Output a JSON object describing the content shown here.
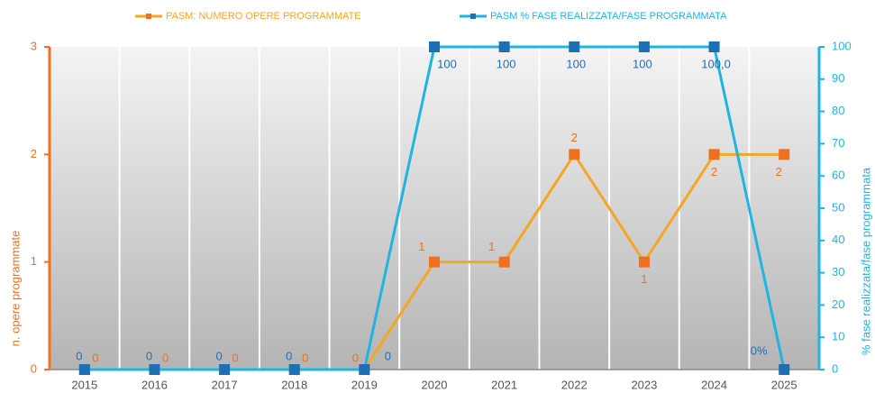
{
  "chart_data": {
    "type": "line",
    "categories": [
      "2015",
      "2016",
      "2017",
      "2018",
      "2019",
      "2020",
      "2021",
      "2022",
      "2023",
      "2024",
      "2025"
    ],
    "series": [
      {
        "name": "PASM: NUMERO OPERE PROGRAMMATE",
        "color": "#f5a623",
        "marker_color": "#f07020",
        "values": [
          0,
          0,
          0,
          0,
          0,
          1,
          1,
          2,
          1,
          2,
          2
        ]
      },
      {
        "name": "PASM % FASE REALIZZATA/FASE PROGRAMMATA",
        "color": "#1fb5e0",
        "marker_color": "#1f6fb5",
        "axis": "y2",
        "values": [
          0,
          0,
          0,
          0,
          0,
          100,
          100,
          100,
          100,
          100,
          0
        ],
        "value_labels": [
          "0",
          "0",
          "0",
          "0",
          "0",
          "100",
          "100",
          "100",
          "100",
          "100,0",
          "0%"
        ]
      }
    ],
    "ylabel": "n. opere programmate",
    "y2label": "% fase realizzata/fase programmata",
    "ylim": [
      0,
      3
    ],
    "yticks": [
      0,
      1,
      2,
      3
    ],
    "y2lim": [
      0,
      100
    ],
    "y2ticks": [
      0,
      10,
      20,
      30,
      40,
      50,
      60,
      70,
      80,
      90,
      100
    ],
    "grid": false
  }
}
